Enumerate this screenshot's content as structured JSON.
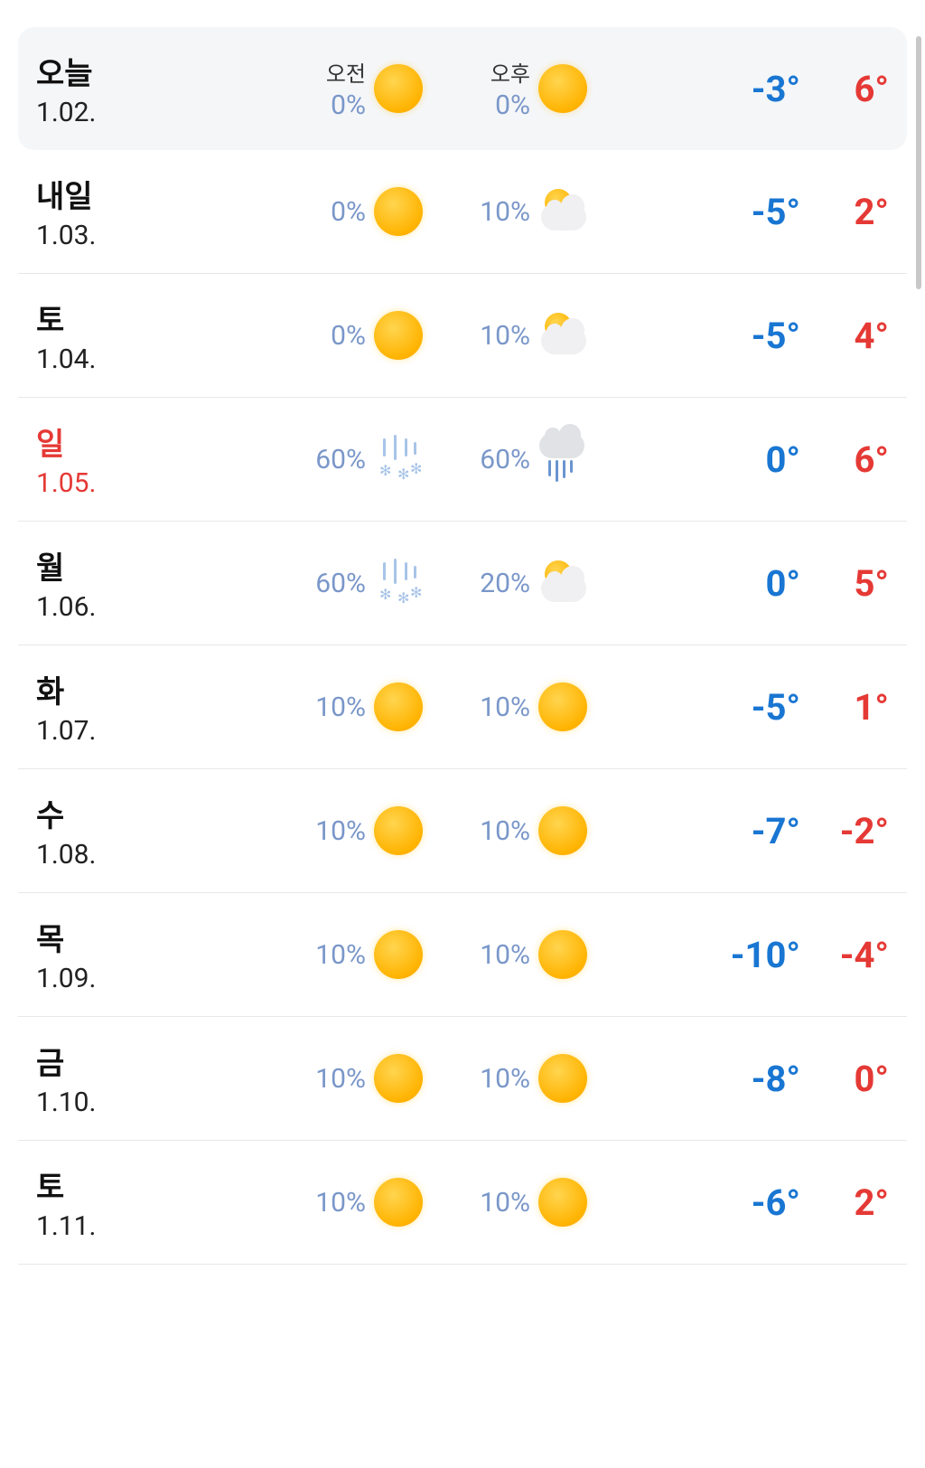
{
  "header": {
    "am_label": "오전",
    "pm_label": "오후"
  },
  "colors": {
    "low_temp": "#1976d2",
    "high_temp": "#e53935",
    "precip": "#7a97c9",
    "sunday": "#e53935"
  },
  "forecast": [
    {
      "day_label": "오늘",
      "date": "1.02.",
      "is_sunday": false,
      "is_today": true,
      "am_precip": "0%",
      "am_icon": "sunny",
      "pm_precip": "0%",
      "pm_icon": "sunny",
      "low": "-3°",
      "high": "6°"
    },
    {
      "day_label": "내일",
      "date": "1.03.",
      "is_sunday": false,
      "is_today": false,
      "am_precip": "0%",
      "am_icon": "sunny",
      "pm_precip": "10%",
      "pm_icon": "partly",
      "low": "-5°",
      "high": "2°"
    },
    {
      "day_label": "토",
      "date": "1.04.",
      "is_sunday": false,
      "is_today": false,
      "am_precip": "0%",
      "am_icon": "sunny",
      "pm_precip": "10%",
      "pm_icon": "partly",
      "low": "-5°",
      "high": "4°"
    },
    {
      "day_label": "일",
      "date": "1.05.",
      "is_sunday": true,
      "is_today": false,
      "am_precip": "60%",
      "am_icon": "snow",
      "pm_precip": "60%",
      "pm_icon": "rain",
      "low": "0°",
      "high": "6°"
    },
    {
      "day_label": "월",
      "date": "1.06.",
      "is_sunday": false,
      "is_today": false,
      "am_precip": "60%",
      "am_icon": "snow",
      "pm_precip": "20%",
      "pm_icon": "partly",
      "low": "0°",
      "high": "5°"
    },
    {
      "day_label": "화",
      "date": "1.07.",
      "is_sunday": false,
      "is_today": false,
      "am_precip": "10%",
      "am_icon": "sunny",
      "pm_precip": "10%",
      "pm_icon": "sunny",
      "low": "-5°",
      "high": "1°"
    },
    {
      "day_label": "수",
      "date": "1.08.",
      "is_sunday": false,
      "is_today": false,
      "am_precip": "10%",
      "am_icon": "sunny",
      "pm_precip": "10%",
      "pm_icon": "sunny",
      "low": "-7°",
      "high": "-2°"
    },
    {
      "day_label": "목",
      "date": "1.09.",
      "is_sunday": false,
      "is_today": false,
      "am_precip": "10%",
      "am_icon": "sunny",
      "pm_precip": "10%",
      "pm_icon": "sunny",
      "low": "-10°",
      "high": "-4°"
    },
    {
      "day_label": "금",
      "date": "1.10.",
      "is_sunday": false,
      "is_today": false,
      "am_precip": "10%",
      "am_icon": "sunny",
      "pm_precip": "10%",
      "pm_icon": "sunny",
      "low": "-8°",
      "high": "0°"
    },
    {
      "day_label": "토",
      "date": "1.11.",
      "is_sunday": false,
      "is_today": false,
      "am_precip": "10%",
      "am_icon": "sunny",
      "pm_precip": "10%",
      "pm_icon": "sunny",
      "low": "-6°",
      "high": "2°"
    }
  ]
}
